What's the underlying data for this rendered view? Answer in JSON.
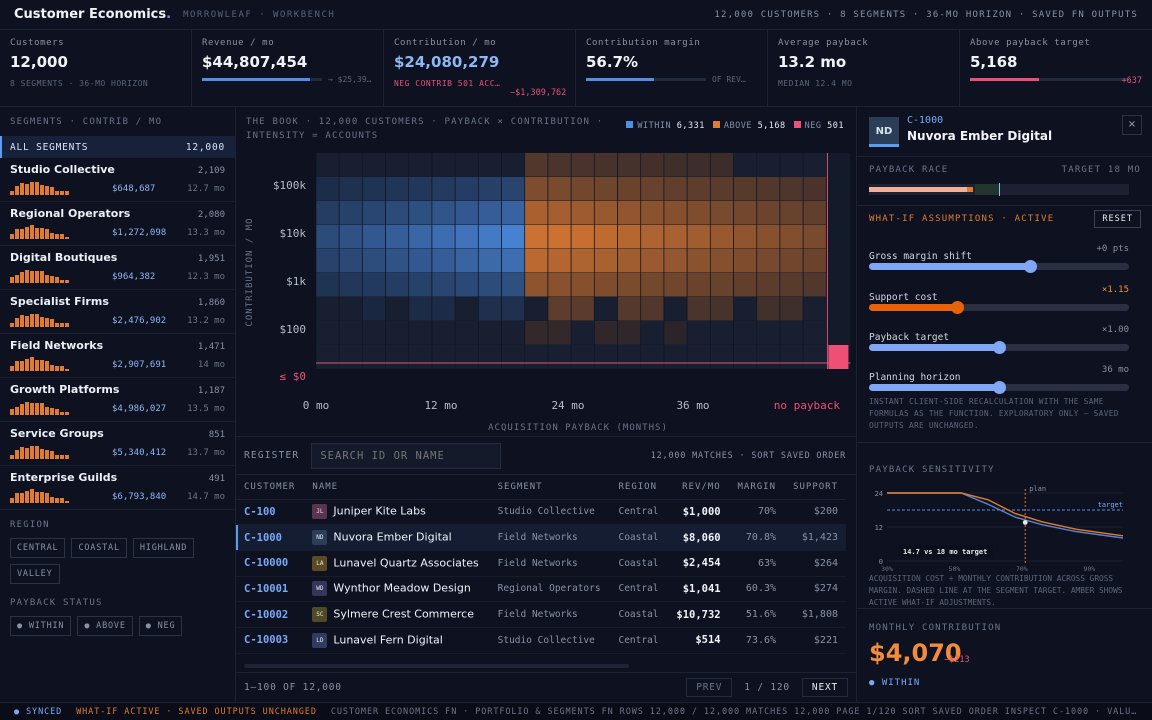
{
  "app": {
    "brand": "Customer Economics",
    "brand_dot": ".",
    "org": "MORROWLEAF · WORKBENCH",
    "summary": "12,000 CUSTOMERS · 8 SEGMENTS · 36-MO HORIZON · SAVED FN OUTPUTS"
  },
  "kpis": [
    {
      "label": "Customers",
      "value": "12,000",
      "sub": "8 SEGMENTS · 36-MO HORIZON"
    },
    {
      "label": "Revenue / mo",
      "value": "$44,807,454",
      "bar_text": "→ $25,39…",
      "bar": 0.9
    },
    {
      "label": "Contribution / mo",
      "value": "$24,080,279",
      "sub": "NEG CONTRIB 501 ACC…",
      "delta": "−$1,309,762"
    },
    {
      "label": "Contribution margin",
      "value": "56.7%",
      "bar_text": "OF REV…",
      "bar": 0.57
    },
    {
      "label": "Average payback",
      "value": "13.2 mo",
      "sub": "MEDIAN 12.4 MO"
    },
    {
      "label": "Above payback target",
      "value": "5,168",
      "delta": "+637",
      "bar": 0.43
    }
  ],
  "sidebar": {
    "caption": "SEGMENTS · CONTRIB / MO",
    "all_label": "ALL SEGMENTS",
    "all_count": "12,000",
    "segments": [
      {
        "name": "Studio Collective",
        "count": "2,109",
        "amount": "$648,687",
        "months": "12.7 mo"
      },
      {
        "name": "Regional Operators",
        "count": "2,080",
        "amount": "$1,272,098",
        "months": "13.3 mo"
      },
      {
        "name": "Digital Boutiques",
        "count": "1,951",
        "amount": "$964,382",
        "months": "12.3 mo"
      },
      {
        "name": "Specialist Firms",
        "count": "1,860",
        "amount": "$2,476,902",
        "months": "13.2 mo"
      },
      {
        "name": "Field Networks",
        "count": "1,471",
        "amount": "$2,907,691",
        "months": "14 mo"
      },
      {
        "name": "Growth Platforms",
        "count": "1,187",
        "amount": "$4,986,027",
        "months": "13.5 mo"
      },
      {
        "name": "Service Groups",
        "count": "851",
        "amount": "$5,340,412",
        "months": "13.7 mo"
      },
      {
        "name": "Enterprise Guilds",
        "count": "491",
        "amount": "$6,793,840",
        "months": "14.7 mo"
      }
    ],
    "region_caption": "REGION",
    "regions": [
      "CENTRAL",
      "COASTAL",
      "HIGHLAND",
      "VALLEY"
    ],
    "status_caption": "PAYBACK STATUS",
    "statuses": [
      "● WITHIN",
      "● ABOVE",
      "● NEG"
    ]
  },
  "heatmap": {
    "title": "THE BOOK · 12,000 CUSTOMERS · PAYBACK × CONTRIBUTION · INTENSITY = ACCOUNTS",
    "legend": [
      {
        "label": "WITHIN",
        "count": "6,331",
        "color": "#4f8fe8"
      },
      {
        "label": "ABOVE",
        "count": "5,168",
        "color": "#e07b32"
      },
      {
        "label": "NEG",
        "count": "501",
        "color": "#ef4f74"
      }
    ],
    "y_ticks": [
      "$100k",
      "$10k",
      "$1k",
      "$100",
      "≤ $0"
    ],
    "x_ticks": [
      "0 mo",
      "12 mo",
      "24 mo",
      "36 mo"
    ],
    "no_payback": "no payback",
    "xlabel": "ACQUISITION PAYBACK (MONTHS)",
    "ylabel": "CONTRIBUTION / MO"
  },
  "register": {
    "label": "REGISTER",
    "search_placeholder": "SEARCH ID OR NAME",
    "matches": "12,000 MATCHES · SORT SAVED ORDER",
    "columns": [
      "CUSTOMER",
      "NAME",
      "SEGMENT",
      "REGION",
      "REV/MO",
      "MARGIN",
      "SUPPORT"
    ],
    "rows": [
      {
        "id": "C-100",
        "initials": "JL",
        "color": "#5a3550",
        "name": "Juniper Kite Labs",
        "segment": "Studio Collective",
        "region": "Central",
        "rev": "$1,000",
        "margin": "70%",
        "support": "$200"
      },
      {
        "id": "C-1000",
        "initials": "ND",
        "color": "#2c3e57",
        "name": "Nuvora Ember Digital",
        "segment": "Field Networks",
        "region": "Coastal",
        "rev": "$8,060",
        "margin": "70.8%",
        "support": "$1,423",
        "selected": true
      },
      {
        "id": "C-10000",
        "initials": "LA",
        "color": "#5c4a22",
        "name": "Lunavel Quartz Associates",
        "segment": "Field Networks",
        "region": "Coastal",
        "rev": "$2,454",
        "margin": "63%",
        "support": "$264"
      },
      {
        "id": "C-10001",
        "initials": "WD",
        "color": "#35355c",
        "name": "Wynthor Meadow Design",
        "segment": "Regional Operators",
        "region": "Central",
        "rev": "$1,041",
        "margin": "60.3%",
        "support": "$274"
      },
      {
        "id": "C-10002",
        "initials": "SC",
        "color": "#4e4a26",
        "name": "Sylmere Crest Commerce",
        "segment": "Field Networks",
        "region": "Coastal",
        "rev": "$10,732",
        "margin": "51.6%",
        "support": "$1,808"
      },
      {
        "id": "C-10003",
        "initials": "LD",
        "color": "#2f3b60",
        "name": "Lunavel Fern Digital",
        "segment": "Studio Collective",
        "region": "Central",
        "rev": "$514",
        "margin": "73.6%",
        "support": "$221"
      }
    ],
    "range": "1–100 OF 12,000",
    "prev": "PREV",
    "page": "1 / 120",
    "next": "NEXT"
  },
  "detail": {
    "initials": "ND",
    "id": "C-1000",
    "name": "Nuvora Ember Digital",
    "close": "×",
    "race_caption": "PAYBACK RACE",
    "race_target": "TARGET 18 MO",
    "race_progress": 0.4,
    "whatif_caption": "WHAT-IF ASSUMPTIONS · ACTIVE",
    "reset": "RESET",
    "sliders": [
      {
        "label": "Gross margin shift",
        "value": "+0 pts",
        "pos": 0.62,
        "active": false
      },
      {
        "label": "Support cost",
        "value": "×1.15",
        "pos": 0.34,
        "active": true
      },
      {
        "label": "Payback target",
        "value": "×1.00",
        "pos": 0.5,
        "active": false
      },
      {
        "label": "Planning horizon",
        "value": "36 mo",
        "pos": 0.5,
        "active": false
      }
    ],
    "whatif_note": "INSTANT CLIENT-SIDE RECALCULATION WITH THE SAME FORMULAS AS THE FUNCTION. EXPLORATORY ONLY — SAVED OUTPUTS ARE UNCHANGED.",
    "sens_caption": "PAYBACK SENSITIVITY",
    "sens_note": "ACQUISITION COST ÷ MONTHLY CONTRIBUTION ACROSS GROSS MARGIN. DASHED LINE AT THE SEGMENT TARGET. AMBER SHOWS ACTIVE WHAT-IF ADJUSTMENTS.",
    "mc_caption": "MONTHLY CONTRIBUTION",
    "mc_value": "$4,070",
    "mc_delta": "−$213",
    "mc_status": "● WITHIN"
  },
  "chart_data": {
    "type": "line",
    "x": [
      30,
      50,
      70,
      90
    ],
    "x_tick_labels": [
      "30%",
      "50%",
      "70%",
      "90%"
    ],
    "ylim": [
      0,
      24
    ],
    "y_ticks": [
      0,
      12,
      24
    ],
    "series": [
      {
        "name": "target",
        "values": [
          18,
          18,
          18,
          18
        ],
        "color": "#4f8fe8"
      },
      {
        "name": "",
        "values": [
          24,
          24,
          12.4,
          8.1
        ],
        "color": "#5b82c9"
      },
      {
        "name": "",
        "values": [
          24,
          24,
          13.4,
          8.9
        ],
        "color": "#e07b32"
      }
    ],
    "marker_label": "plan",
    "annotation": "14.7 vs 18 mo target"
  },
  "status": {
    "synced": "● SYNCED",
    "whatif": "WHAT-IF ACTIVE · SAVED OUTPUTS UNCHANGED",
    "rest": "CUSTOMER ECONOMICS FN · PORTFOLIO & SEGMENTS FN   ROWS 12,000 / 12,000   MATCHES 12,000   PAGE 1/120   SORT SAVED ORDER   INSPECT C-1000 · VALU…"
  }
}
